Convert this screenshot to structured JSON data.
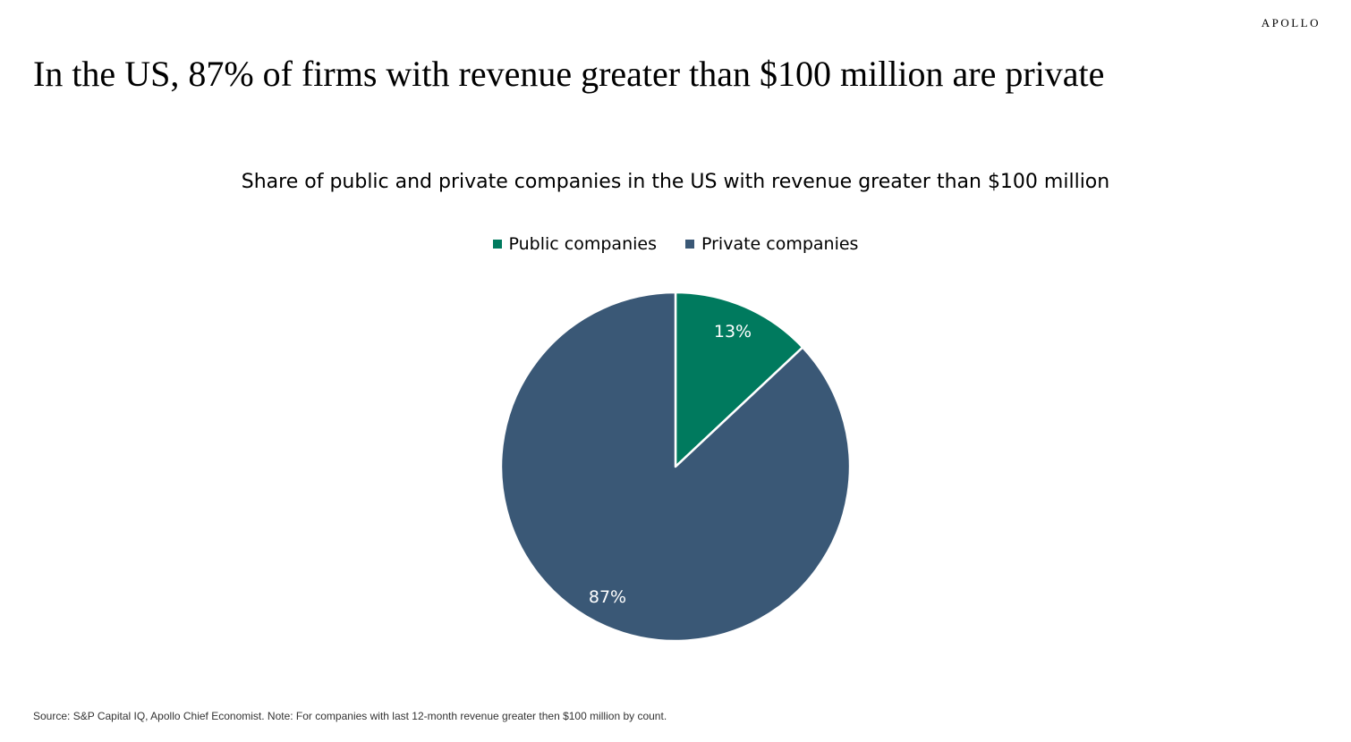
{
  "brand": {
    "name": "APOLLO"
  },
  "headline": "In the US, 87% of firms with revenue greater than $100 million are private",
  "footnote": "Source: S&P Capital IQ, Apollo Chief Economist. Note: For companies with last 12-month revenue greater then $100 million by count.",
  "colors": {
    "public": "#007A5E",
    "private": "#3A5876",
    "separator": "#ffffff"
  },
  "chart_data": {
    "type": "pie",
    "title": "Share of public and private companies in the US with revenue greater than $100 million",
    "legend_position": "top",
    "categories": [
      "Public companies",
      "Private companies"
    ],
    "values": [
      13,
      87
    ],
    "labels": [
      "13%",
      "87%"
    ],
    "unit": "%"
  }
}
